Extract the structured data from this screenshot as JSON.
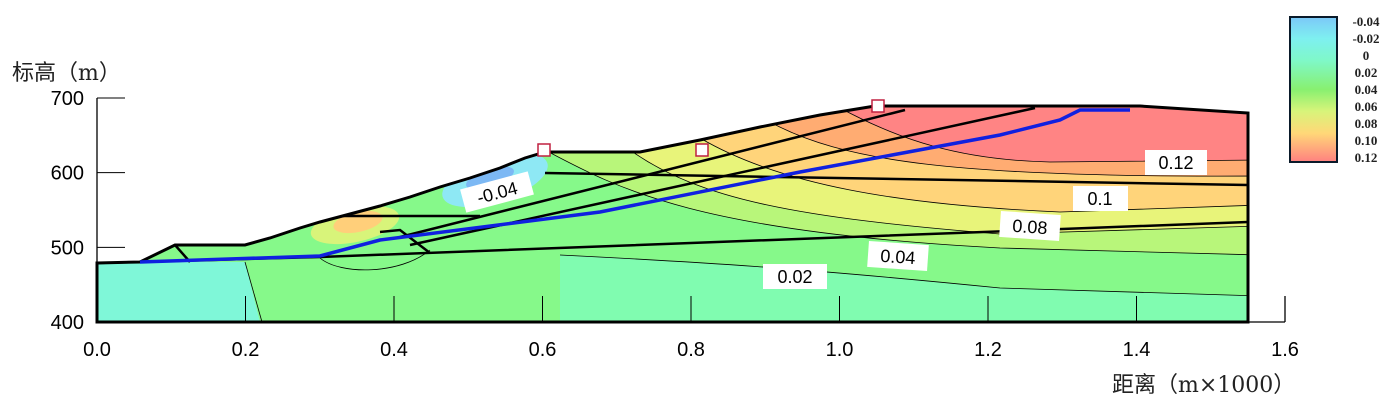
{
  "chart_data": {
    "type": "heatmap",
    "subtype": "contour cross-section",
    "xlabel": "距离（m×1000）",
    "ylabel": "标高（m）",
    "xlim": [
      0.0,
      1.6
    ],
    "ylim": [
      400,
      700
    ],
    "x_ticks": [
      "0.0",
      "0.2",
      "0.4",
      "0.6",
      "0.8",
      "1.0",
      "1.2",
      "1.4",
      "1.6"
    ],
    "y_ticks": [
      "700",
      "600",
      "500",
      "400"
    ],
    "legend": {
      "placement": "top-right",
      "levels": [
        "-0.04",
        "-0.02",
        "0",
        "0.02",
        "0.04",
        "0.06",
        "0.08",
        "0.10",
        "0.12"
      ],
      "colors": [
        "#7cc8f8",
        "#7ef0f0",
        "#7ff8c8",
        "#80f8a0",
        "#88f070",
        "#d8f47a",
        "#ffd878",
        "#ffb070",
        "#ff8080"
      ]
    },
    "contour_labels": [
      "0.12",
      "0.1",
      "0.08",
      "0.04",
      "0.02",
      "-0.04"
    ],
    "series": [
      {
        "name": "slip surface",
        "color": "#1020e0"
      }
    ]
  }
}
